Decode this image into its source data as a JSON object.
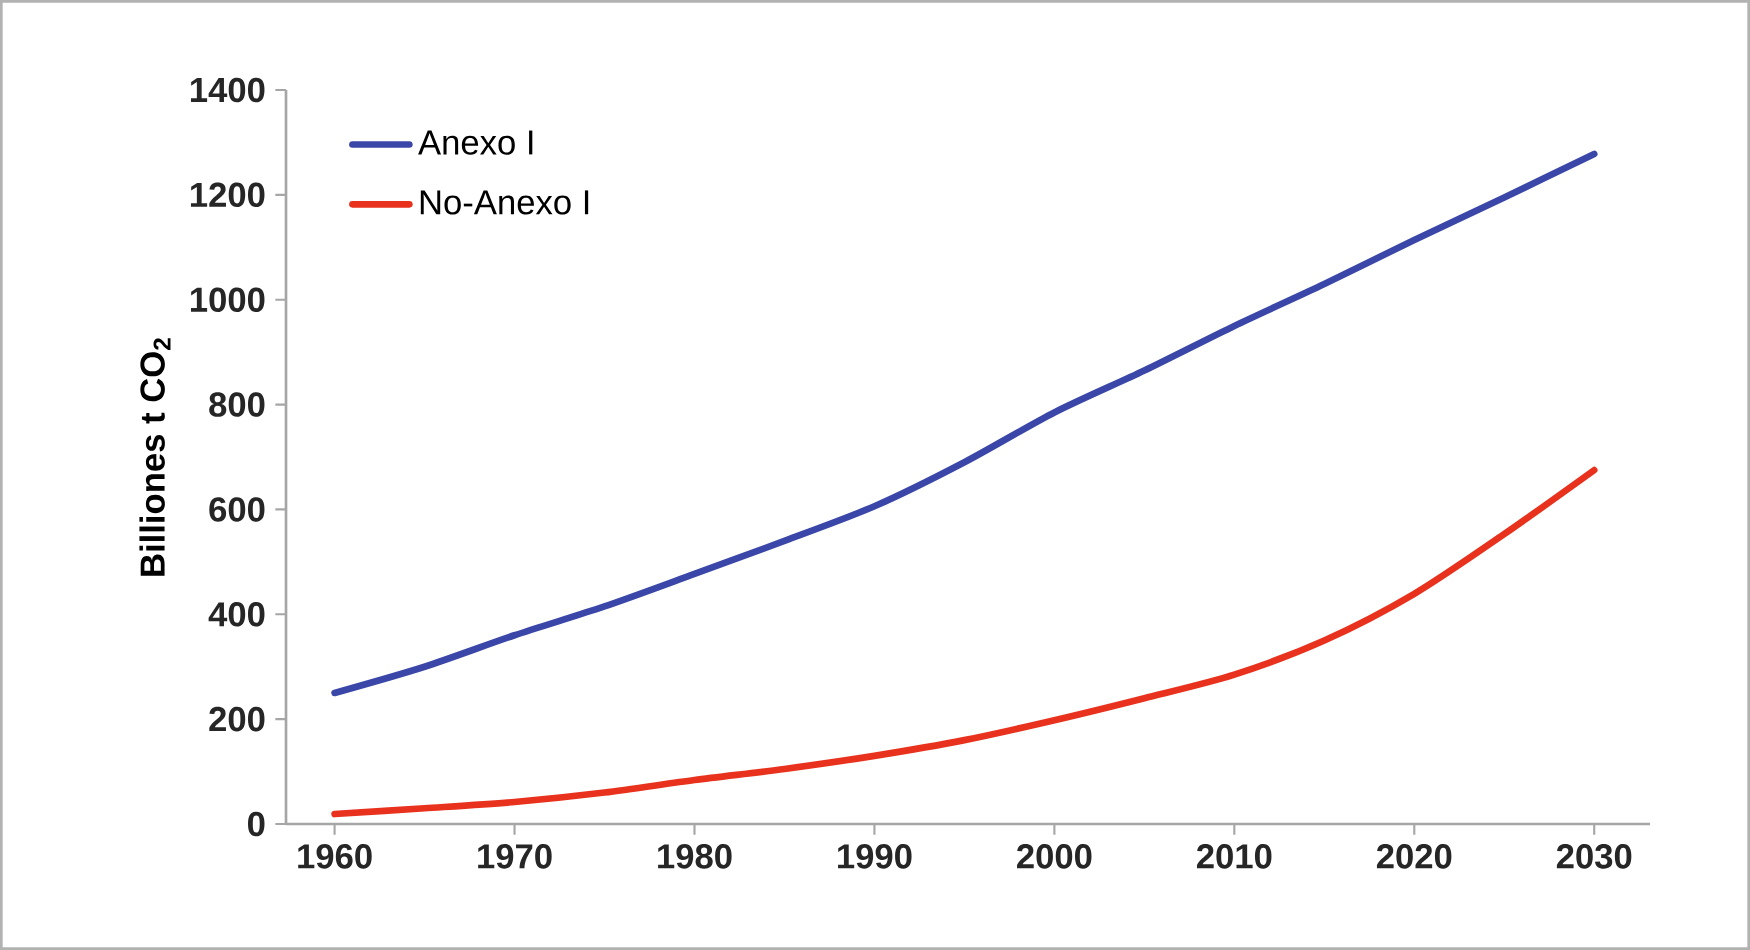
{
  "chart_data": {
    "type": "line",
    "ylabel": "Billiones t CO$_{2}$",
    "x": [
      1960,
      1965,
      1970,
      1975,
      1980,
      1985,
      1990,
      1995,
      2000,
      2005,
      2010,
      2015,
      2020,
      2025,
      2030
    ],
    "series": [
      {
        "name": "Anexo I",
        "color": "#3b47a8",
        "values": [
          250,
          300,
          360,
          415,
          477,
          540,
          606,
          690,
          785,
          865,
          950,
          1030,
          1114,
          1195,
          1278
        ]
      },
      {
        "name": "No-Anexo I",
        "color": "#e8321e",
        "values": [
          19,
          30,
          42,
          60,
          84,
          105,
          130,
          160,
          198,
          240,
          285,
          350,
          439,
          553,
          675
        ]
      }
    ],
    "xlim": [
      1957.3,
      2033.1
    ],
    "ylim": [
      0,
      1400
    ],
    "xticks": [
      1960,
      1970,
      1980,
      1990,
      2000,
      2010,
      2020,
      2030
    ],
    "yticks": [
      0,
      200,
      400,
      600,
      800,
      1000,
      1200,
      1400
    ],
    "legend": "top left",
    "grid": false,
    "marker": "none",
    "line_style": "solid"
  }
}
